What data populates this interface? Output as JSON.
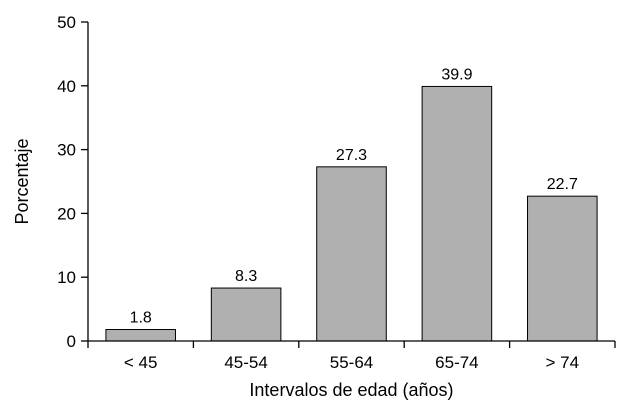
{
  "chart_data": {
    "type": "bar",
    "categories": [
      "< 45",
      "45-54",
      "55-64",
      "65-74",
      "> 74"
    ],
    "values": [
      1.8,
      8.3,
      27.3,
      39.9,
      22.7
    ],
    "data_labels": [
      "1.8",
      "8.3",
      "27.3",
      "39.9",
      "22.7"
    ],
    "title": "",
    "xlabel": "Intervalos de edad (años)",
    "ylabel": "Porcentaje",
    "ylim": [
      0,
      50
    ],
    "yticks": [
      0,
      10,
      20,
      30,
      40,
      50
    ],
    "ytick_labels": [
      "0",
      "10",
      "20",
      "30",
      "40",
      "50"
    ],
    "grid": false,
    "legend": "none",
    "bar_color": "#b0b0b0",
    "bar_edge_color": "#000000"
  }
}
